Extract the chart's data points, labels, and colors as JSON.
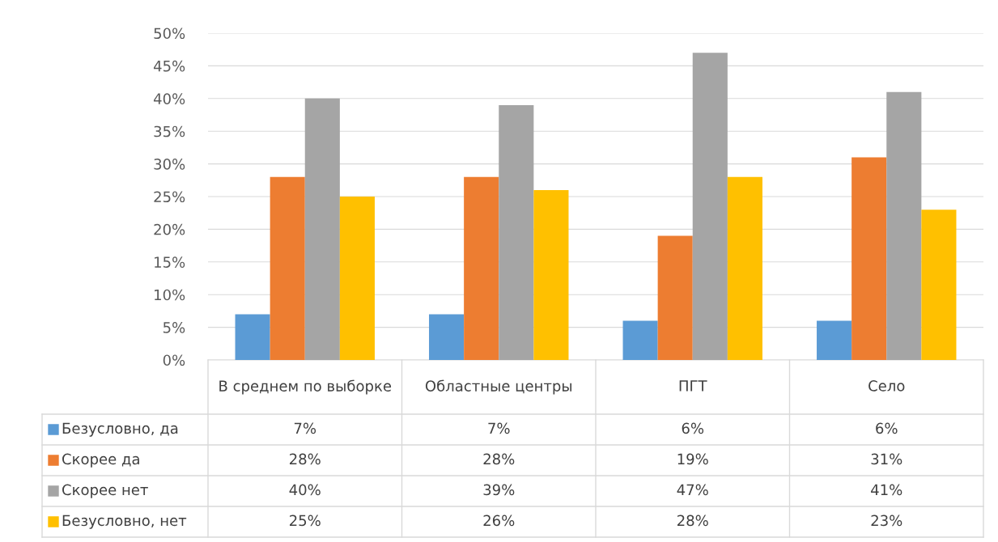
{
  "chart_data": {
    "type": "bar",
    "categories": [
      "В среднем по выборке",
      "Областные центры",
      "ПГТ",
      "Село"
    ],
    "series": [
      {
        "name": "Безусловно, да",
        "color": "#5b9bd5",
        "values": [
          7,
          7,
          6,
          6
        ],
        "value_labels": [
          "7%",
          "7%",
          "6%",
          "6%"
        ]
      },
      {
        "name": "Скорее да",
        "color": "#ed7d31",
        "values": [
          28,
          28,
          19,
          31
        ],
        "value_labels": [
          "28%",
          "28%",
          "19%",
          "31%"
        ]
      },
      {
        "name": "Скорее нет",
        "color": "#a5a5a5",
        "values": [
          40,
          39,
          47,
          41
        ],
        "value_labels": [
          "40%",
          "39%",
          "47%",
          "41%"
        ]
      },
      {
        "name": "Безусловно, нет",
        "color": "#ffc000",
        "values": [
          25,
          26,
          28,
          23
        ],
        "value_labels": [
          "25%",
          "26%",
          "28%",
          "23%"
        ]
      }
    ],
    "ylim": [
      0,
      50
    ],
    "yticks": [
      {
        "value": 0,
        "label": "0%"
      },
      {
        "value": 5,
        "label": "5%"
      },
      {
        "value": 10,
        "label": "10%"
      },
      {
        "value": 15,
        "label": "15%"
      },
      {
        "value": 20,
        "label": "20%"
      },
      {
        "value": 25,
        "label": "25%"
      },
      {
        "value": 30,
        "label": "30%"
      },
      {
        "value": 35,
        "label": "35%"
      },
      {
        "value": 40,
        "label": "40%"
      },
      {
        "value": 45,
        "label": "45%"
      },
      {
        "value": 50,
        "label": "50%"
      }
    ],
    "grid": "y",
    "legend": "bottom"
  }
}
